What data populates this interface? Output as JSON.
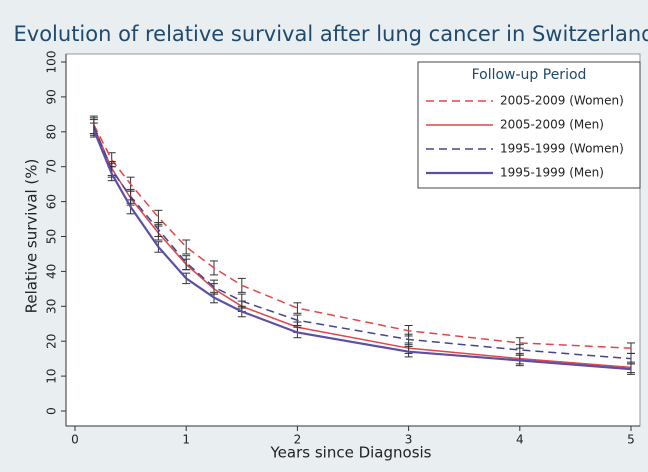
{
  "chart_data": {
    "type": "line",
    "title": "Evolution of relative survival after lung cancer in Switzerland",
    "x_label": "Years since Diagnosis",
    "y_label": "Relative survival (%)",
    "legend_title": "Follow-up Period",
    "legend_position": "top-right",
    "x": [
      0.17,
      0.33,
      0.5,
      0.75,
      1,
      1.25,
      1.5,
      2,
      3,
      4,
      5
    ],
    "xlim": [
      0,
      5
    ],
    "xticks": [
      0,
      1,
      2,
      3,
      4,
      5
    ],
    "ylim": [
      0,
      100
    ],
    "yticks": [
      0,
      10,
      20,
      30,
      40,
      50,
      60,
      70,
      80,
      90,
      100
    ],
    "series": [
      {
        "name": "2005-2009 (Women)",
        "color": "#e0474c",
        "dash": true,
        "values": [
          82,
          72,
          65,
          55.5,
          47,
          41,
          36,
          29.5,
          23,
          19.5,
          18
        ],
        "errors": [
          2.5,
          2,
          2,
          2,
          2,
          2,
          2,
          1.5,
          1.5,
          1.5,
          1.5
        ]
      },
      {
        "name": "2005-2009 (Men)",
        "color": "#e0474c",
        "dash": false,
        "values": [
          81.5,
          69.5,
          61,
          51,
          42,
          35,
          30,
          24,
          18,
          15,
          12.5
        ],
        "errors": [
          2,
          2,
          2,
          2,
          1.5,
          1.5,
          1.5,
          1.5,
          1.5,
          1.5,
          1.5
        ]
      },
      {
        "name": "1995-1999 (Women)",
        "color": "#45458f",
        "dash": true,
        "values": [
          81.5,
          69,
          61.5,
          52,
          42.5,
          35.5,
          31.5,
          26,
          20.5,
          17.5,
          15
        ],
        "errors": [
          2.5,
          2,
          2,
          2,
          2,
          2,
          2,
          1.5,
          1.5,
          1.5,
          1.5
        ]
      },
      {
        "name": "1995-1999 (Men)",
        "color": "#5b4fa6",
        "dash": false,
        "values": [
          80.5,
          68,
          58.5,
          47,
          38,
          32.5,
          28.5,
          22.5,
          17,
          14.5,
          12
        ],
        "errors": [
          2,
          2,
          2,
          1.5,
          1.5,
          1.5,
          1.5,
          1.5,
          1.5,
          1.5,
          1.5
        ]
      }
    ]
  }
}
